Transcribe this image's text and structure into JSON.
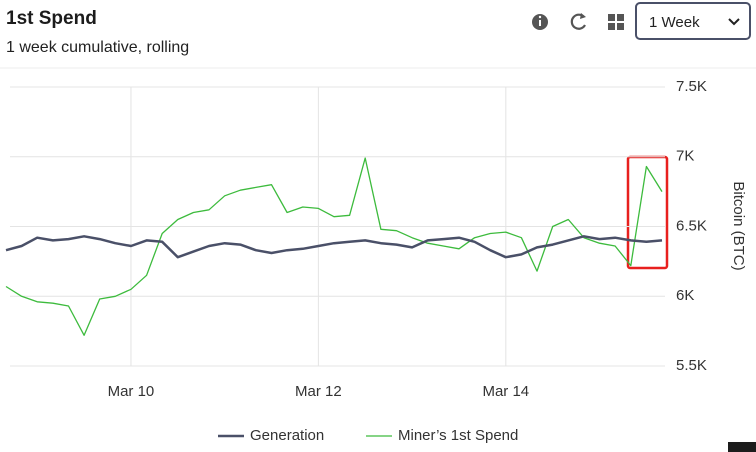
{
  "chart_data": {
    "type": "line",
    "title": "1st Spend",
    "subtitle": "1 week cumulative, rolling",
    "range_select": "1 Week",
    "y_label": "Bitcoin (BTC)",
    "categories": [
      null,
      null,
      null,
      null,
      null,
      null,
      null,
      null,
      "Mar 10",
      null,
      null,
      null,
      null,
      null,
      null,
      null,
      null,
      null,
      null,
      null,
      "Mar 12",
      null,
      null,
      null,
      null,
      null,
      null,
      null,
      null,
      null,
      null,
      null,
      "Mar 14",
      null,
      null,
      null,
      null,
      null,
      null,
      null,
      null,
      null,
      null
    ],
    "series": [
      {
        "name": "Generation",
        "color": "#4a5068",
        "values": [
          6330,
          6360,
          6420,
          6400,
          6410,
          6430,
          6410,
          6380,
          6360,
          6400,
          6390,
          6280,
          6320,
          6360,
          6380,
          6370,
          6330,
          6310,
          6330,
          6340,
          6360,
          6380,
          6390,
          6400,
          6380,
          6370,
          6350,
          6400,
          6410,
          6420,
          6390,
          6330,
          6280,
          6300,
          6350,
          6370,
          6400,
          6430,
          6410,
          6420,
          6400,
          6390,
          6400
        ]
      },
      {
        "name": "Miner’s 1st Spend",
        "color": "#3dbb3d",
        "values": [
          6070,
          6000,
          5960,
          5950,
          5930,
          5720,
          5980,
          6000,
          6050,
          6150,
          6450,
          6550,
          6600,
          6620,
          6720,
          6760,
          6780,
          6800,
          6600,
          6640,
          6630,
          6570,
          6580,
          6990,
          6480,
          6470,
          6420,
          6380,
          6360,
          6340,
          6420,
          6450,
          6460,
          6420,
          6180,
          6500,
          6550,
          6420,
          6380,
          6360,
          6220,
          6930,
          6750
        ]
      }
    ],
    "ylim": [
      5500,
      7500
    ],
    "yticks": [
      {
        "value": 5500,
        "label": "5.5K"
      },
      {
        "value": 6000,
        "label": "6K"
      },
      {
        "value": 6500,
        "label": "6.5K"
      },
      {
        "value": 7000,
        "label": "7K"
      },
      {
        "value": 7500,
        "label": "7.5K"
      }
    ],
    "grid": true,
    "legend": "bottom"
  }
}
